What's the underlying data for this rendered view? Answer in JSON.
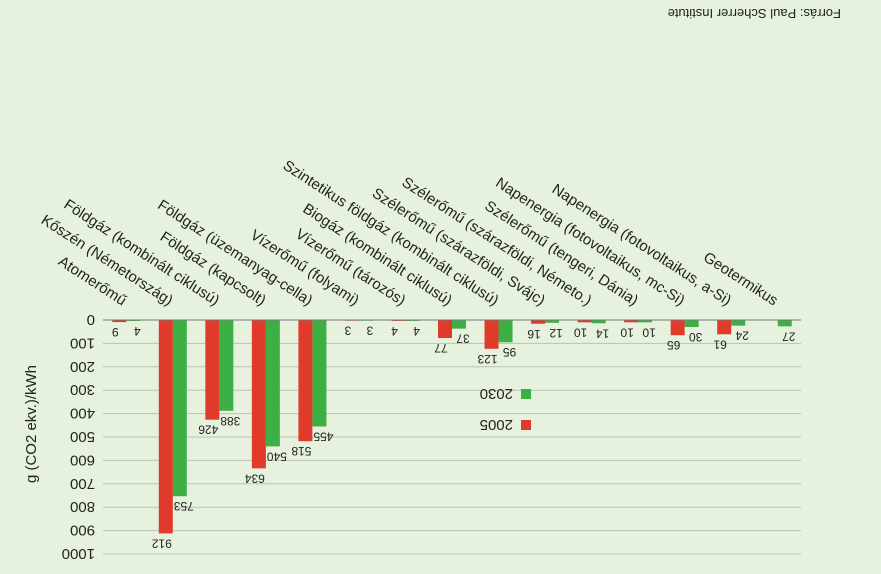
{
  "chart_data": {
    "type": "bar",
    "title": "",
    "source": "Forrás: Paul Scherrer Institute",
    "ylabel": "g (CO2 ekv.)/kWh",
    "ylim": [
      0,
      1000
    ],
    "y_ticks": [
      0,
      100,
      200,
      300,
      400,
      500,
      600,
      700,
      800,
      900,
      1000
    ],
    "y_tick_labels": [
      "0",
      "100",
      "200",
      "300",
      "400",
      "500",
      "600",
      "700",
      "800",
      "900",
      "1000"
    ],
    "legend_position": "center-right",
    "categories": [
      "Atomerőmű",
      "Kőszén (Németország)",
      "Földgáz (kombinált ciklusú)",
      "Földgáz (kapcsolt)",
      "Földgáz (üzemanyag-cella)",
      "Vízerőmű (folyami)",
      "Vízerőmű (tározós)",
      "Biogáz (kombinált ciklusú)",
      "Szintetikus földgáz (kombinált ciklusú)",
      "Szélerőmű (szárazföldi, Svájc)",
      "Szélerőmű (szárazföldi, Németo.)",
      "Szélerőmű (tengeri, Dánia)",
      "Napenergia (fotovoltaikus, mc-Si)",
      "Napenergia (fotovoltaikus, a-Si)",
      "Geotermikus"
    ],
    "series": [
      {
        "name": "2005",
        "color": "#e03a2b",
        "values": [
          9,
          912,
          426,
          634,
          518,
          3,
          4,
          77,
          123,
          16,
          10,
          10,
          65,
          61,
          null
        ],
        "labels": [
          "9",
          "912",
          "426",
          "634",
          "518",
          "3",
          "4",
          "77",
          "123",
          "16",
          "10",
          "10",
          "65",
          "61",
          ""
        ]
      },
      {
        "name": "2030",
        "color": "#3cb044",
        "values": [
          4,
          753,
          388,
          540,
          455,
          3,
          4,
          37,
          95,
          12,
          14,
          10,
          30,
          24,
          27
        ],
        "labels": [
          "4",
          "753",
          "388",
          "540",
          "455",
          "3",
          "4",
          "37",
          "95",
          "12",
          "14",
          "10",
          "30",
          "24",
          "27"
        ]
      }
    ]
  }
}
